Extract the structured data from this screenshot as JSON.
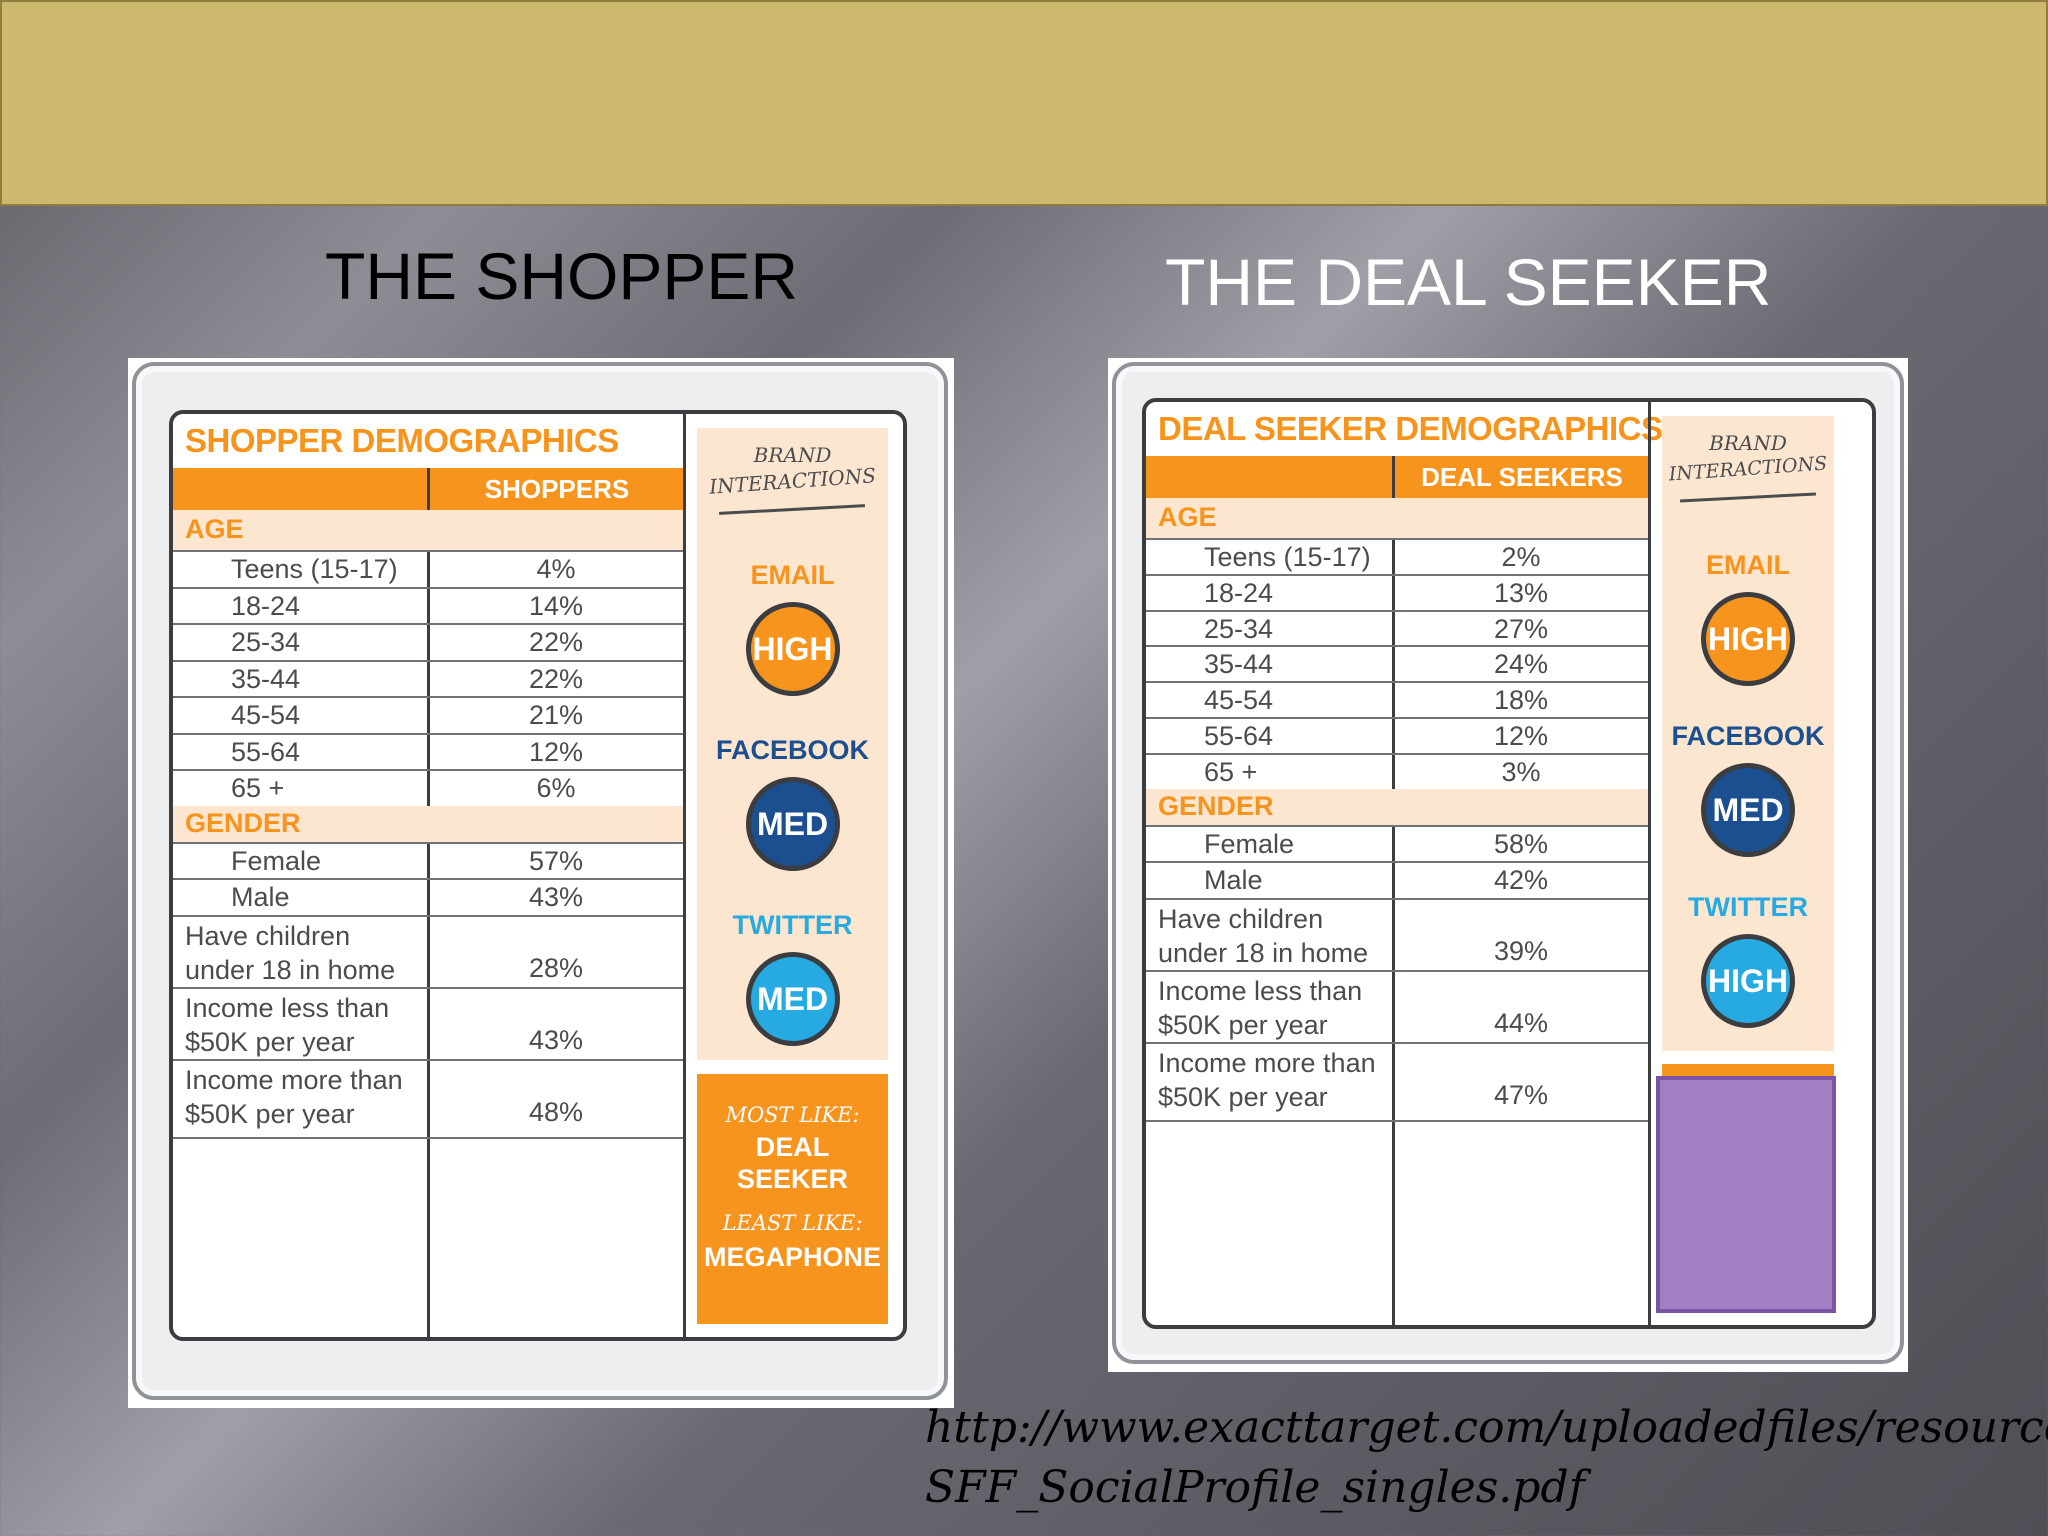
{
  "titles": {
    "left": "THE SHOPPER",
    "right": "THE DEAL SEEKER"
  },
  "shopper": {
    "title": "SHOPPER DEMOGRAPHICS",
    "column": "SHOPPERS",
    "age_label": "AGE",
    "age": [
      {
        "label": "Teens (15-17)",
        "value": "4%"
      },
      {
        "label": "18-24",
        "value": "14%"
      },
      {
        "label": "25-34",
        "value": "22%"
      },
      {
        "label": "35-44",
        "value": "22%"
      },
      {
        "label": "45-54",
        "value": "21%"
      },
      {
        "label": "55-64",
        "value": "12%"
      },
      {
        "label": "65 +",
        "value": "6%"
      }
    ],
    "gender_label": "GENDER",
    "gender": [
      {
        "label": "Female",
        "value": "57%"
      },
      {
        "label": "Male",
        "value": "43%"
      }
    ],
    "other": [
      {
        "line1": "Have children",
        "line2": "under 18 in home",
        "value": "28%"
      },
      {
        "line1": "Income less than",
        "line2": "$50K per year",
        "value": "43%"
      },
      {
        "line1": "Income more than",
        "line2": "$50K per year",
        "value": "48%"
      }
    ],
    "brand_line1": "BRAND",
    "brand_line2": "INTERACTIONS",
    "channels": [
      {
        "name": "EMAIL",
        "level": "HIGH",
        "label_color": "#f7941d",
        "circle_color": "#f7941d"
      },
      {
        "name": "FACEBOOK",
        "level": "MED",
        "label_color": "#1c4f8f",
        "circle_color": "#1c4f8f"
      },
      {
        "name": "TWITTER",
        "level": "MED",
        "label_color": "#27aae1",
        "circle_color": "#27aae1"
      }
    ],
    "most_like_label": "MOST LIKE:",
    "most_like_line1": "DEAL",
    "most_like_line2": "SEEKER",
    "least_like_label": "LEAST LIKE:",
    "least_like_value": "MEGAPHONE"
  },
  "dealseeker": {
    "title": "DEAL SEEKER DEMOGRAPHICS",
    "column": "DEAL SEEKERS",
    "age_label": "AGE",
    "age": [
      {
        "label": "Teens (15-17)",
        "value": "2%"
      },
      {
        "label": "18-24",
        "value": "13%"
      },
      {
        "label": "25-34",
        "value": "27%"
      },
      {
        "label": "35-44",
        "value": "24%"
      },
      {
        "label": "45-54",
        "value": "18%"
      },
      {
        "label": "55-64",
        "value": "12%"
      },
      {
        "label": "65 +",
        "value": "3%"
      }
    ],
    "gender_label": "GENDER",
    "gender": [
      {
        "label": "Female",
        "value": "58%"
      },
      {
        "label": "Male",
        "value": "42%"
      }
    ],
    "other": [
      {
        "line1": "Have children",
        "line2": "under 18 in home",
        "value": "39%"
      },
      {
        "line1": "Income less than",
        "line2": "$50K per year",
        "value": "44%"
      },
      {
        "line1": "Income more than",
        "line2": "$50K per year",
        "value": "47%"
      }
    ],
    "brand_line1": "BRAND",
    "brand_line2": "INTERACTIONS",
    "channels": [
      {
        "name": "EMAIL",
        "level": "HIGH",
        "label_color": "#f7941d",
        "circle_color": "#f7941d"
      },
      {
        "name": "FACEBOOK",
        "level": "MED",
        "label_color": "#1c4f8f",
        "circle_color": "#1c4f8f"
      },
      {
        "name": "TWITTER",
        "level": "HIGH",
        "label_color": "#27aae1",
        "circle_color": "#27aae1"
      }
    ],
    "placeholder_color": "#a07fc3"
  },
  "source": {
    "line1": "http://www.exacttarget.com/uploadedfiles/resources/",
    "line2": "SFF_SocialProfile_singles.pdf"
  }
}
